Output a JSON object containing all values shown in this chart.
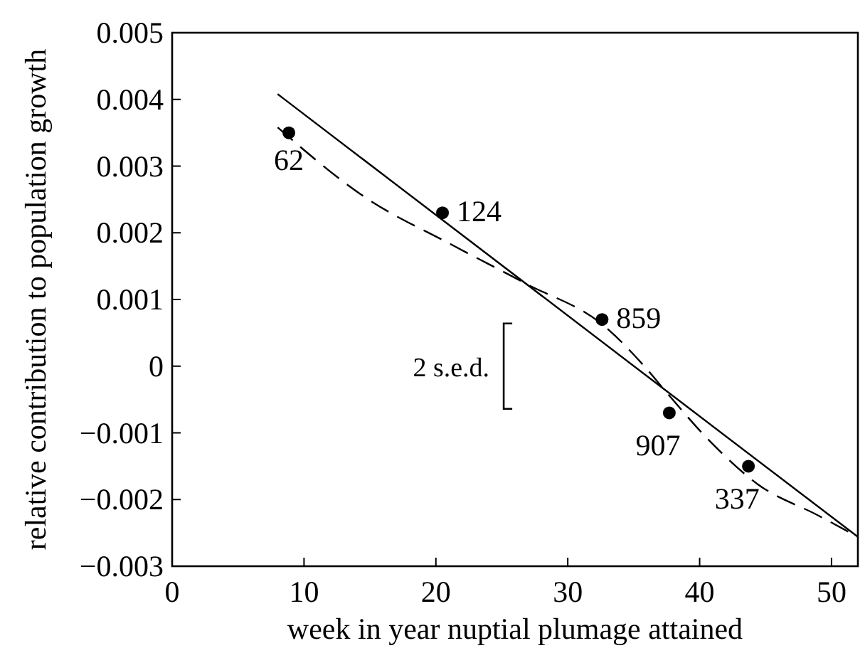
{
  "chart_data": {
    "type": "scatter",
    "xlabel": "week in year nuptial plumage attained",
    "ylabel": "relative contribution to population growth",
    "xlim": [
      0,
      52
    ],
    "xticks": [
      0,
      10,
      20,
      30,
      40,
      50
    ],
    "ylim": [
      -0.003,
      0.005
    ],
    "yticks": [
      {
        "value": -0.003,
        "label": "−0.003"
      },
      {
        "value": -0.002,
        "label": "−0.002"
      },
      {
        "value": -0.001,
        "label": "−0.001"
      },
      0,
      0.001,
      0.002,
      0.003,
      0.004,
      0.005
    ],
    "grid": false,
    "series": [
      {
        "color": "#000000",
        "marker": "circle",
        "x": [
          8.85,
          20.5,
          32.6,
          37.7,
          43.7
        ],
        "values": [
          0.0035,
          0.0023,
          0.0007,
          -0.0007,
          -0.0015
        ]
      },
      {
        "type": "line",
        "color": "#000000",
        "line_style": "solid",
        "marker": "none",
        "x": [
          8,
          37.6,
          52
        ],
        "values": [
          0.00408,
          -0.00039,
          -0.00256
        ]
      },
      {
        "type": "line",
        "color": "#000000",
        "line_style": "dashed",
        "marker": "none",
        "x": [
          8,
          14.5,
          21.4,
          26.8,
          32.9,
          35.8,
          37.6,
          40.8,
          44.4,
          49,
          52
        ],
        "values": [
          0.00358,
          0.00255,
          0.0018,
          0.00124,
          0.00058,
          0,
          -0.00042,
          -0.00113,
          -0.00177,
          -0.00224,
          -0.00256
        ]
      }
    ],
    "annotations": [
      {
        "text": "62",
        "x": 8.85,
        "y": 0.0035
      },
      {
        "text": "124",
        "x": 20.5,
        "y": 0.0023
      },
      {
        "text": "859",
        "x": 32.6,
        "y": 0.0007
      },
      {
        "text": "907",
        "x": 37.7,
        "y": -0.0007
      },
      {
        "text": "337",
        "x": 43.7,
        "y": -0.0015
      },
      "2 s.e.d."
    ]
  }
}
